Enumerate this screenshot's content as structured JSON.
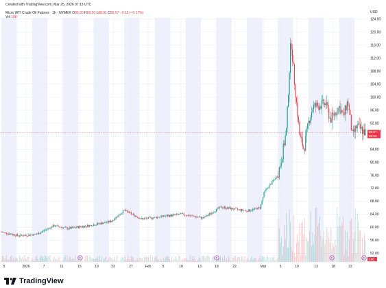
{
  "header": {
    "created_text": "Created with TradingView.com, Mar 25, 2026 07:13 UTC",
    "instrument": "Micro WTI Crude Oil Futures · 1h · NYMEX",
    "o_label": "O",
    "o_value": "89.20",
    "h_label": "H",
    "h_value": "89.20",
    "l_label": "L",
    "l_value": "88.91",
    "c_label": "C",
    "c_value": "89.07",
    "change": "−0.15 (−0.17%)",
    "vol_label": "Vol",
    "vol_value": "198"
  },
  "price_axis": {
    "currency": "USD",
    "labels": [
      "124.00",
      "120.00",
      "116.00",
      "112.00",
      "108.00",
      "104.00",
      "100.00",
      "96.00",
      "92.00",
      "88.00",
      "84.00",
      "80.00",
      "76.00",
      "72.00",
      "68.00",
      "64.00",
      "60.00",
      "56.00",
      "52.00"
    ],
    "last_price_label": "89.07",
    "countdown_label": "56:56",
    "volume_badge": "198"
  },
  "time_axis": {
    "labels": [
      "5",
      "2026",
      "7",
      "11",
      "15",
      "19",
      "23",
      "27",
      "Feb",
      "5",
      "10",
      "13",
      "18",
      "22",
      "Mar",
      "5",
      "10",
      "13",
      "18",
      "22"
    ]
  },
  "branding": {
    "logo_text": "TradingView"
  },
  "colors": {
    "up": "#089981",
    "down": "#f23645",
    "grid": "#e9eef8",
    "session_bg": "#eef1fb"
  },
  "chart_data": {
    "type": "candlestick",
    "title": "Micro WTI Crude Oil Futures · 1h · NYMEX",
    "ylim": [
      50,
      127
    ],
    "x_range": [
      "2026-01-01",
      "2026-03-25"
    ],
    "anchor_series": [
      {
        "date": "2026-01-01",
        "price": 58.5
      },
      {
        "date": "2026-01-05",
        "price": 57.4
      },
      {
        "date": "2026-01-09",
        "price": 57.8
      },
      {
        "date": "2026-01-13",
        "price": 60.5
      },
      {
        "date": "2026-01-16",
        "price": 59.6
      },
      {
        "date": "2026-01-21",
        "price": 60.5
      },
      {
        "date": "2026-01-26",
        "price": 61.8
      },
      {
        "date": "2026-01-29",
        "price": 65.2
      },
      {
        "date": "2026-02-02",
        "price": 62.5
      },
      {
        "date": "2026-02-06",
        "price": 63.2
      },
      {
        "date": "2026-02-11",
        "price": 64.0
      },
      {
        "date": "2026-02-16",
        "price": 62.8
      },
      {
        "date": "2026-02-20",
        "price": 66.2
      },
      {
        "date": "2026-02-26",
        "price": 65.0
      },
      {
        "date": "2026-03-01",
        "price": 66.0
      },
      {
        "date": "2026-03-02",
        "price": 71.0
      },
      {
        "date": "2026-03-05",
        "price": 76.0
      },
      {
        "date": "2026-03-06",
        "price": 82.0
      },
      {
        "date": "2026-03-07",
        "price": 90.0
      },
      {
        "date": "2026-03-08",
        "price": 118.0
      },
      {
        "date": "2026-03-09",
        "price": 102.0
      },
      {
        "date": "2026-03-10",
        "price": 88.0
      },
      {
        "date": "2026-03-11",
        "price": 84.0
      },
      {
        "date": "2026-03-12",
        "price": 92.0
      },
      {
        "date": "2026-03-13",
        "price": 97.0
      },
      {
        "date": "2026-03-16",
        "price": 98.0
      },
      {
        "date": "2026-03-17",
        "price": 93.0
      },
      {
        "date": "2026-03-19",
        "price": 97.0
      },
      {
        "date": "2026-03-20",
        "price": 94.0
      },
      {
        "date": "2026-03-21",
        "price": 99.0
      },
      {
        "date": "2026-03-22",
        "price": 88.0
      },
      {
        "date": "2026-03-23",
        "price": 91.0
      },
      {
        "date": "2026-03-25",
        "price": 89.07
      }
    ],
    "last_price": 89.07,
    "volume_max_label": "198",
    "legend": "top-left",
    "grid": true
  }
}
